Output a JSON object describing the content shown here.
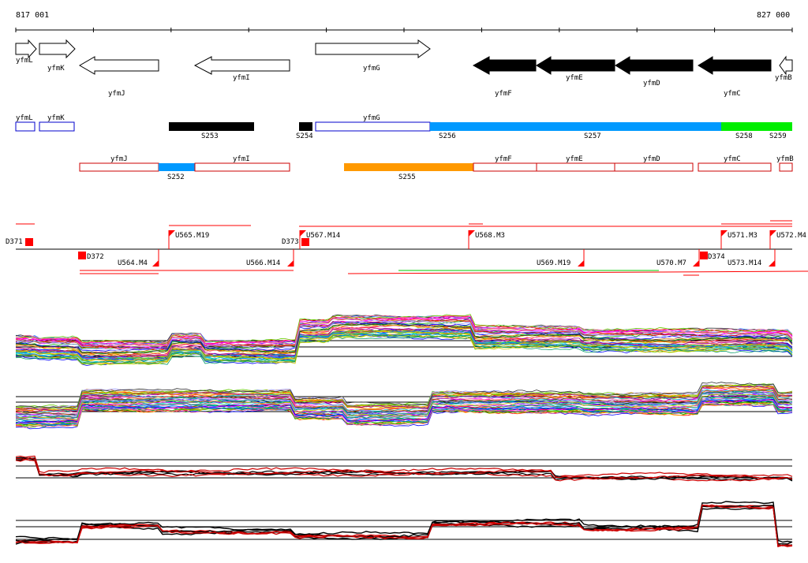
{
  "coords": {
    "start": "817 001",
    "end": "827 000"
  },
  "genes": [
    {
      "name": "yfmL",
      "strand": "+",
      "row": 0
    },
    {
      "name": "yfmK",
      "strand": "+",
      "row": 0
    },
    {
      "name": "yfmJ",
      "strand": "-",
      "row": 1
    },
    {
      "name": "yfmI",
      "strand": "-",
      "row": 1
    },
    {
      "name": "yfmG",
      "strand": "+",
      "row": 0
    },
    {
      "name": "yfmF",
      "strand": "-",
      "row": 1
    },
    {
      "name": "yfmE",
      "strand": "-",
      "row": 1
    },
    {
      "name": "yfmD",
      "strand": "-",
      "row": 1
    },
    {
      "name": "yfmC",
      "strand": "-",
      "row": 1
    },
    {
      "name": "yfmB",
      "strand": "-",
      "row": 1
    }
  ],
  "segments_upper": [
    {
      "label": "S253",
      "color": "#000000"
    },
    {
      "label": "S254",
      "color": "#000000"
    },
    {
      "label": "S256",
      "color": "#0099ff"
    },
    {
      "label": "S257",
      "color": "#0099ff"
    },
    {
      "label": "S258",
      "color": "#00ee00"
    },
    {
      "label": "S259",
      "color": "#00ee00"
    }
  ],
  "segments_lower": [
    {
      "label": "S252",
      "color": "#0099ff"
    },
    {
      "label": "S255",
      "color": "#ff9900"
    }
  ],
  "upper_gene_boxes": [
    "yfmL",
    "yfmK",
    "yfmG"
  ],
  "lower_gene_boxes": [
    "yfmJ",
    "yfmI",
    "yfmF",
    "yfmE",
    "yfmD",
    "yfmC",
    "yfmB"
  ],
  "markers_top": [
    "D371",
    "U565.M19",
    "D373",
    "U567.M14",
    "U568.M3",
    "U571.M3",
    "U572.M4"
  ],
  "markers_bottom": [
    "D372",
    "U564.M4",
    "U566.M14",
    "U569.M19",
    "U570.M7",
    "D374",
    "U573.M14"
  ],
  "colors": {
    "forward_arrow": "#ffffff",
    "reverse_filled": "#000000",
    "marker": "#ff0000",
    "gene_box_upper": "#0000cc",
    "gene_box_lower": "#cc0000"
  }
}
